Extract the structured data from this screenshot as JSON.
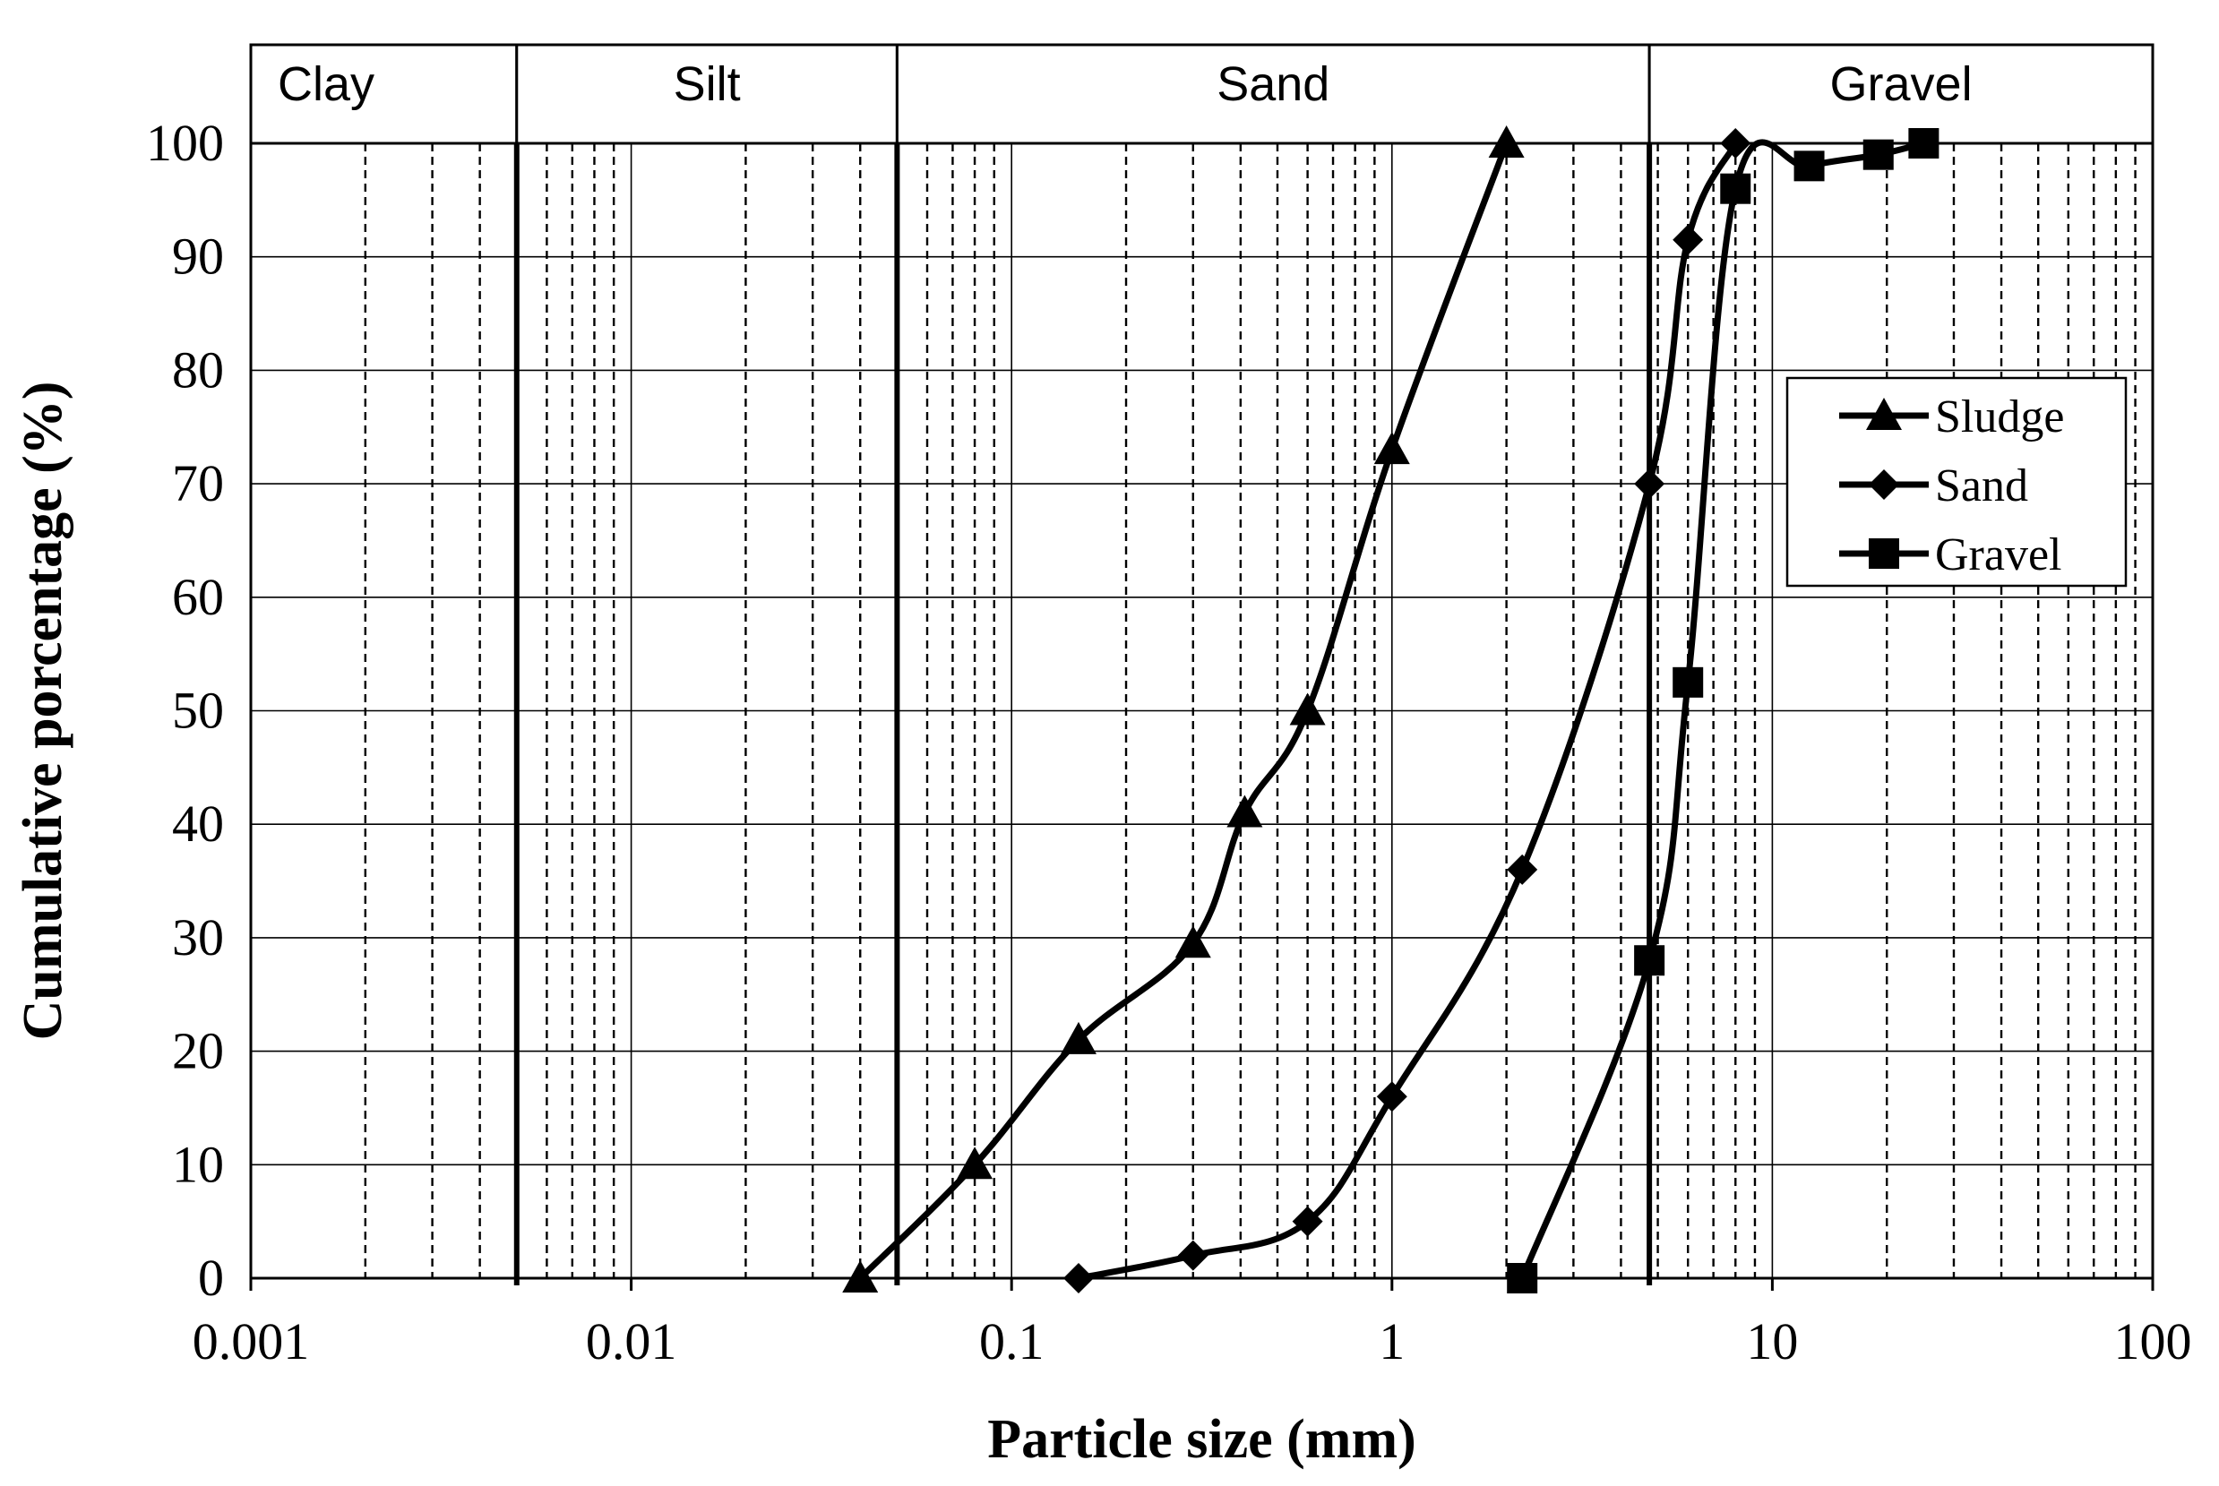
{
  "chart_data": {
    "type": "line",
    "xscale": "log",
    "xlim": [
      0.001,
      100
    ],
    "ylim": [
      0,
      100
    ],
    "grid": true,
    "xlabel": "Particle size (mm)",
    "ylabel": "Cumulative porcentage (%)",
    "x_ticks": [
      "0.001",
      "0.01",
      "0.1",
      "1",
      "10",
      "100"
    ],
    "y_ticks": [
      "0",
      "10",
      "20",
      "30",
      "40",
      "50",
      "60",
      "70",
      "80",
      "90",
      "100"
    ],
    "legend_position": "right",
    "zones": [
      {
        "label": "Clay",
        "from": 0.001,
        "to": 0.005
      },
      {
        "label": "Silt",
        "from": 0.005,
        "to": 0.05
      },
      {
        "label": "Sand",
        "from": 0.05,
        "to": 4.75
      },
      {
        "label": "Gravel",
        "from": 4.75,
        "to": 100
      }
    ],
    "series": [
      {
        "name": "Sludge",
        "marker": "triangle",
        "x": [
          0.04,
          0.08,
          0.15,
          0.3,
          0.41,
          0.6,
          1.0,
          2.0
        ],
        "y": [
          0,
          10,
          21,
          29.5,
          41,
          50,
          73,
          100
        ]
      },
      {
        "name": "Sand",
        "marker": "diamond",
        "x": [
          0.15,
          0.3,
          0.6,
          1.0,
          2.2,
          4.75,
          6.0,
          8.0
        ],
        "y": [
          0,
          2,
          5,
          16,
          36,
          70,
          91.5,
          100
        ]
      },
      {
        "name": "Gravel",
        "marker": "square",
        "x": [
          2.2,
          4.75,
          6.0,
          8.0,
          12.5,
          19.0,
          25.0
        ],
        "y": [
          0,
          28,
          52.5,
          96,
          98,
          99,
          100
        ]
      }
    ]
  }
}
